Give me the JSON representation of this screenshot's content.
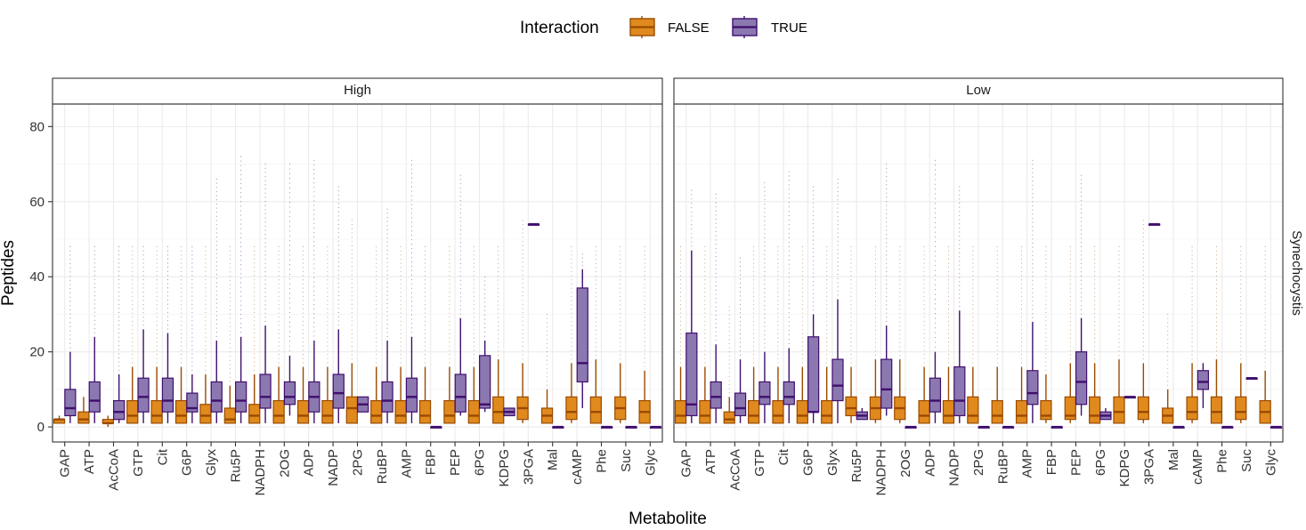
{
  "chart_data": {
    "type": "boxplot",
    "xlabel": "Metabolite",
    "ylabel": "Peptides",
    "ylim": [
      -4,
      86
    ],
    "yticks": [
      0,
      20,
      40,
      60,
      80
    ],
    "legend": {
      "title": "Interaction",
      "position": "top",
      "entries": [
        {
          "label": "FALSE",
          "fill": "#E08A1E",
          "stroke": "#9A4A00"
        },
        {
          "label": "TRUE",
          "fill": "#8C78B0",
          "stroke": "#3F0F6E"
        }
      ]
    },
    "row_strip": "Synechocystis",
    "categories": [
      "GAP",
      "ATP",
      "AcCoA",
      "GTP",
      "Cit",
      "G6P",
      "Glyx",
      "Ru5P",
      "NADPH",
      "2OG",
      "ADP",
      "NADP",
      "2PG",
      "RuBP",
      "AMP",
      "FBP",
      "PEP",
      "6PG",
      "KDPG",
      "3PGA",
      "Mal",
      "cAMP",
      "Phe",
      "Suc",
      "Glyc"
    ],
    "facets": [
      {
        "name": "High",
        "series": [
          {
            "name": "FALSE",
            "boxes": [
              [
                1,
                1,
                2,
                2,
                3,
                3
              ],
              [
                1,
                1,
                2,
                4,
                8,
                6
              ],
              [
                0,
                1,
                1,
                2,
                3,
                3
              ],
              [
                1,
                1,
                3,
                7,
                16,
                48
              ],
              [
                1,
                1,
                3,
                7,
                16,
                48
              ],
              [
                1,
                1,
                3,
                7,
                16,
                48
              ],
              [
                1,
                1,
                3,
                6,
                14,
                48
              ],
              [
                1,
                1,
                2,
                5,
                11,
                48
              ],
              [
                1,
                1,
                3,
                6,
                14,
                48
              ],
              [
                1,
                1,
                3,
                7,
                16,
                48
              ],
              [
                1,
                1,
                3,
                7,
                16,
                48
              ],
              [
                1,
                1,
                3,
                7,
                16,
                48
              ],
              [
                1,
                1,
                5,
                8,
                17,
                55
              ],
              [
                1,
                1,
                3,
                7,
                16,
                48
              ],
              [
                1,
                1,
                3,
                7,
                16,
                48
              ],
              [
                1,
                1,
                3,
                7,
                16,
                48
              ],
              [
                1,
                1,
                3,
                7,
                16,
                48
              ],
              [
                1,
                1,
                3,
                7,
                16,
                48
              ],
              [
                1,
                1,
                4,
                8,
                18,
                48
              ],
              [
                1,
                2,
                5,
                8,
                17,
                55
              ],
              [
                1,
                1,
                3,
                5,
                10,
                30
              ],
              [
                1,
                2,
                4,
                8,
                17,
                48
              ],
              [
                1,
                1,
                4,
                8,
                18,
                48
              ],
              [
                1,
                2,
                5,
                8,
                17,
                48
              ],
              [
                1,
                1,
                4,
                7,
                15,
                48
              ]
            ]
          },
          {
            "name": "TRUE",
            "boxes": [
              [
                1,
                3,
                5,
                10,
                20,
                48
              ],
              [
                1,
                4,
                7,
                12,
                24,
                48
              ],
              [
                1,
                2,
                4,
                7,
                14,
                48
              ],
              [
                1,
                4,
                8,
                13,
                26,
                48
              ],
              [
                1,
                4,
                7,
                13,
                25,
                48
              ],
              [
                1,
                4,
                5,
                9,
                14,
                48
              ],
              [
                1,
                4,
                7,
                12,
                23,
                66
              ],
              [
                1,
                4,
                7,
                12,
                24,
                72
              ],
              [
                1,
                5,
                8,
                14,
                27,
                70
              ],
              [
                3,
                6,
                8,
                12,
                19,
                70
              ],
              [
                1,
                4,
                8,
                12,
                23,
                71
              ],
              [
                1,
                5,
                9,
                14,
                26,
                64
              ],
              [
                4,
                4,
                6,
                8,
                8,
                8
              ],
              [
                1,
                4,
                7,
                12,
                23,
                58
              ],
              [
                1,
                4,
                8,
                13,
                24,
                71
              ],
              [
                0,
                0,
                0,
                0,
                0,
                0
              ],
              [
                3,
                4,
                8,
                14,
                29,
                67
              ],
              [
                4,
                5,
                6,
                19,
                23,
                40
              ],
              [
                3,
                3,
                4,
                5,
                5,
                5
              ],
              [
                54,
                54,
                54,
                54,
                54,
                54
              ],
              [
                0,
                0,
                0,
                0,
                0,
                0
              ],
              [
                5,
                12,
                17,
                37,
                42,
                46
              ],
              [
                0,
                0,
                0,
                0,
                0,
                0
              ],
              [
                0,
                0,
                0,
                0,
                0,
                0
              ],
              [
                0,
                0,
                0,
                0,
                0,
                0
              ]
            ]
          }
        ]
      },
      {
        "name": "Low",
        "series": [
          {
            "name": "FALSE",
            "boxes": [
              [
                1,
                1,
                3,
                7,
                16,
                48
              ],
              [
                1,
                1,
                3,
                7,
                16,
                48
              ],
              [
                1,
                1,
                2,
                4,
                8,
                32
              ],
              [
                1,
                1,
                3,
                7,
                16,
                48
              ],
              [
                1,
                1,
                3,
                7,
                16,
                48
              ],
              [
                1,
                1,
                3,
                7,
                16,
                48
              ],
              [
                1,
                1,
                3,
                7,
                16,
                48
              ],
              [
                1,
                3,
                5,
                8,
                16,
                48
              ],
              [
                1,
                2,
                5,
                8,
                18,
                48
              ],
              [
                1,
                2,
                5,
                8,
                18,
                48
              ],
              [
                1,
                1,
                3,
                7,
                16,
                48
              ],
              [
                1,
                1,
                3,
                7,
                16,
                48
              ],
              [
                1,
                1,
                3,
                8,
                16,
                48
              ],
              [
                1,
                1,
                3,
                7,
                16,
                48
              ],
              [
                1,
                1,
                3,
                7,
                16,
                48
              ],
              [
                1,
                2,
                3,
                7,
                14,
                48
              ],
              [
                1,
                2,
                3,
                8,
                17,
                48
              ],
              [
                1,
                1,
                3,
                8,
                17,
                48
              ],
              [
                1,
                1,
                4,
                8,
                18,
                48
              ],
              [
                1,
                2,
                4,
                8,
                17,
                55
              ],
              [
                1,
                1,
                3,
                5,
                10,
                30
              ],
              [
                1,
                2,
                4,
                8,
                17,
                48
              ],
              [
                1,
                1,
                4,
                8,
                18,
                48
              ],
              [
                1,
                2,
                4,
                8,
                17,
                48
              ],
              [
                1,
                1,
                4,
                7,
                15,
                48
              ]
            ]
          },
          {
            "name": "TRUE",
            "boxes": [
              [
                1,
                3,
                6,
                25,
                47,
                63
              ],
              [
                1,
                5,
                8,
                12,
                22,
                62
              ],
              [
                1,
                3,
                5,
                9,
                18,
                45
              ],
              [
                1,
                6,
                8,
                12,
                20,
                65
              ],
              [
                1,
                6,
                8,
                12,
                21,
                68
              ],
              [
                1,
                4,
                4,
                24,
                30,
                64
              ],
              [
                1,
                7,
                11,
                18,
                34,
                66
              ],
              [
                2,
                2,
                3,
                4,
                5,
                5
              ],
              [
                3,
                5,
                10,
                18,
                27,
                70
              ],
              [
                0,
                0,
                0,
                0,
                0,
                0
              ],
              [
                1,
                4,
                7,
                13,
                20,
                71
              ],
              [
                1,
                3,
                7,
                16,
                31,
                64
              ],
              [
                0,
                0,
                0,
                0,
                0,
                0
              ],
              [
                0,
                0,
                0,
                0,
                0,
                0
              ],
              [
                1,
                6,
                9,
                15,
                28,
                71
              ],
              [
                0,
                0,
                0,
                0,
                0,
                0
              ],
              [
                3,
                6,
                12,
                20,
                29,
                67
              ],
              [
                2,
                2,
                3,
                4,
                5,
                5
              ],
              [
                8,
                8,
                8,
                8,
                8,
                8
              ],
              [
                54,
                54,
                54,
                54,
                54,
                54
              ],
              [
                0,
                0,
                0,
                0,
                0,
                0
              ],
              [
                5,
                10,
                12,
                15,
                17,
                17
              ],
              [
                0,
                0,
                0,
                0,
                0,
                0
              ],
              [
                13,
                13,
                13,
                13,
                13,
                13
              ],
              [
                0,
                0,
                0,
                0,
                0,
                0
              ]
            ]
          }
        ]
      }
    ]
  }
}
